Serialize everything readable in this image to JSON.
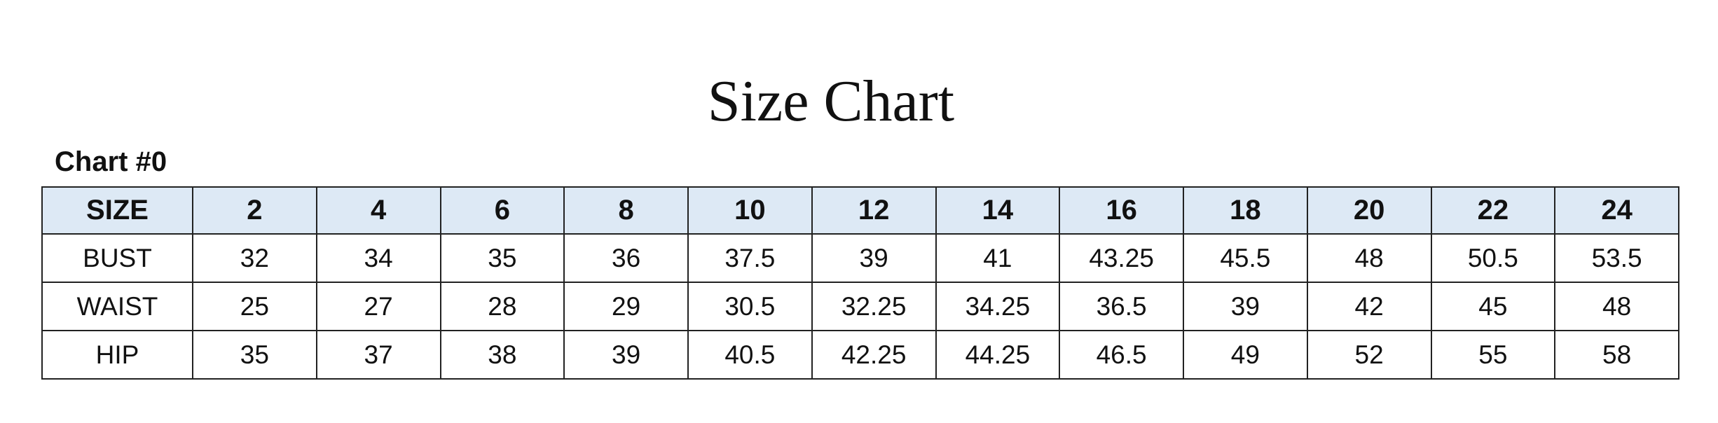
{
  "title": "Size Chart",
  "subtitle": "Chart #0",
  "header_color": "#dde9f5",
  "table": {
    "headers": [
      "SIZE",
      "2",
      "4",
      "6",
      "8",
      "10",
      "12",
      "14",
      "16",
      "18",
      "20",
      "22",
      "24"
    ],
    "rows": [
      [
        "BUST",
        "32",
        "34",
        "35",
        "36",
        "37.5",
        "39",
        "41",
        "43.25",
        "45.5",
        "48",
        "50.5",
        "53.5"
      ],
      [
        "WAIST",
        "25",
        "27",
        "28",
        "29",
        "30.5",
        "32.25",
        "34.25",
        "36.5",
        "39",
        "42",
        "45",
        "48"
      ],
      [
        "HIP",
        "35",
        "37",
        "38",
        "39",
        "40.5",
        "42.25",
        "44.25",
        "46.5",
        "49",
        "52",
        "55",
        "58"
      ]
    ]
  }
}
